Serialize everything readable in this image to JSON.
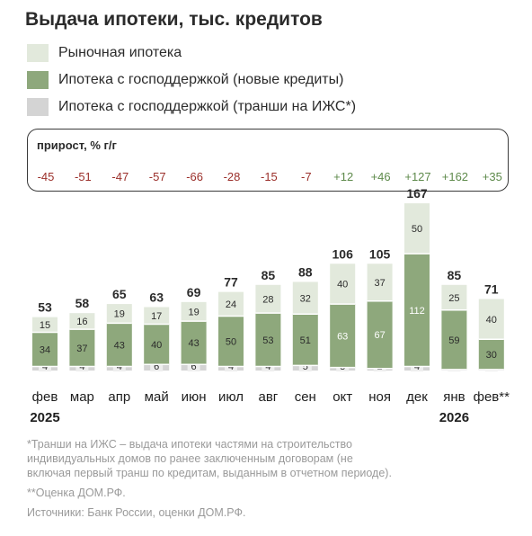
{
  "title": "Выдача ипотеки, тыс. кредитов",
  "legend": [
    {
      "label": "Рыночная ипотека",
      "color": "#e2e9dc"
    },
    {
      "label": "Ипотека с господдержкой (новые кредиты)",
      "color": "#8ea87c"
    },
    {
      "label": "Ипотека с господдержкой (транши на ИЖС*)",
      "color": "#d4d4d4"
    }
  ],
  "growth": {
    "label": "прирост, % г/г",
    "values": [
      "-45",
      "-51",
      "-47",
      "-57",
      "-66",
      "-28",
      "-15",
      "-7",
      "+12",
      "+46",
      "+127",
      "+162",
      "+35"
    ],
    "negative_color": "#9b2f2a",
    "positive_color": "#5e8a4b"
  },
  "chart_data": {
    "type": "bar",
    "stacked": true,
    "categories": [
      "фев",
      "мар",
      "апр",
      "май",
      "июн",
      "июл",
      "авг",
      "сен",
      "окт",
      "ноя",
      "дек",
      "янв",
      "фев**"
    ],
    "year_labels": [
      {
        "index": 0,
        "label": "2025"
      },
      {
        "index": 11,
        "label": "2026"
      }
    ],
    "series": [
      {
        "name": "Ипотека с господдержкой (транши на ИЖС*)",
        "values": [
          4,
          4,
          4,
          6,
          6,
          4,
          4,
          5,
          3,
          2,
          4,
          1,
          1
        ],
        "color": "#d4d4d4"
      },
      {
        "name": "Ипотека с господдержкой (новые кредиты)",
        "values": [
          34,
          37,
          43,
          40,
          43,
          50,
          53,
          51,
          63,
          67,
          112,
          59,
          30
        ],
        "color": "#8ea87c"
      },
      {
        "name": "Рыночная ипотека",
        "values": [
          15,
          16,
          19,
          17,
          19,
          24,
          28,
          32,
          40,
          37,
          50,
          25,
          40
        ],
        "color": "#e2e9dc"
      }
    ],
    "totals": [
      53,
      58,
      65,
      63,
      69,
      77,
      85,
      88,
      106,
      105,
      167,
      85,
      71
    ]
  },
  "footnotes": [
    "*Транши на ИЖС – выдача ипотеки частями на строительство",
    "индивидуальных домов по ранее заключенным договорам (не",
    "включая первый транш по кредитам, выданным в отчетном периоде).",
    "**Оценка ДОМ.РФ.",
    "Источники: Банк России, оценки ДОМ.РФ."
  ]
}
